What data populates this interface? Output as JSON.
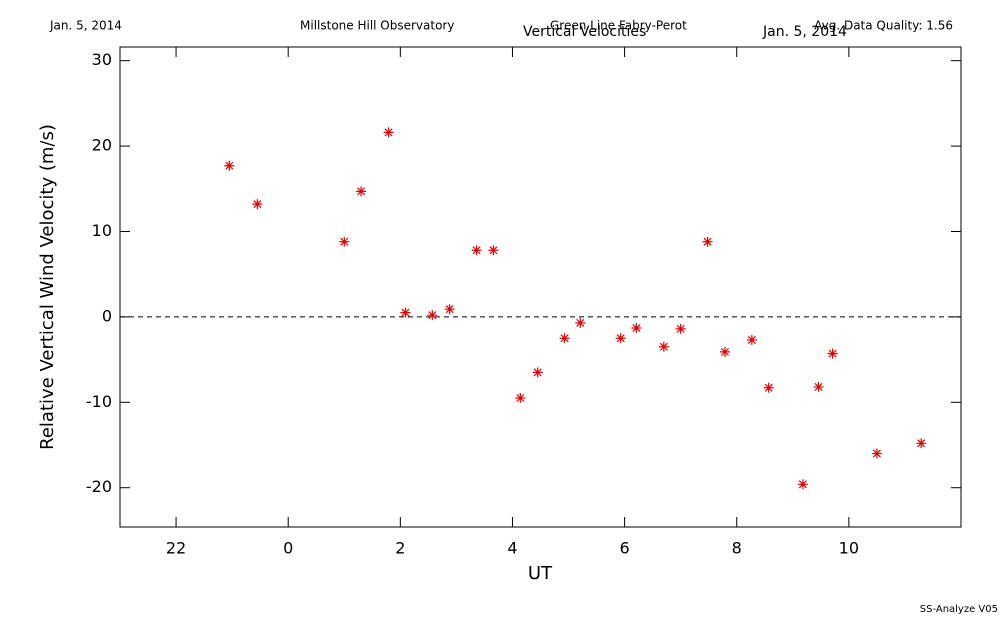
{
  "chart_data": {
    "type": "scatter",
    "header_left": "Jan. 5, 2014",
    "header_center": "Millstone Hill Observatory",
    "instrument": "Green Line Fabry-Perot",
    "title": "Vertical Velocities",
    "subtitle_date": "Jan. 5, 2014",
    "quality": "Avg. Data Quality: 1.56",
    "footer": "SS-Analyze V05",
    "x_label": "UT",
    "y_label": "Relative Vertical Wind Velocity (m/s)",
    "color": "#e00000",
    "hline": 0,
    "x": [
      -1.05,
      -0.55,
      1.0,
      1.3,
      1.79,
      2.09,
      2.57,
      2.88,
      3.36,
      3.66,
      4.14,
      4.45,
      4.93,
      5.21,
      5.93,
      6.21,
      6.7,
      7.0,
      7.48,
      7.79,
      8.27,
      8.57,
      9.18,
      9.46,
      9.71,
      10.5,
      11.29
    ],
    "values": [
      17.7,
      13.2,
      8.8,
      14.7,
      21.6,
      0.5,
      0.2,
      0.9,
      7.8,
      7.8,
      -9.5,
      -6.5,
      -2.5,
      -0.7,
      -2.5,
      -1.3,
      -3.5,
      -1.4,
      8.8,
      -4.1,
      -2.7,
      -8.3,
      -19.6,
      -8.2,
      -4.3,
      -16.0,
      -14.8
    ],
    "xlim": [
      -3,
      12
    ],
    "ylim": [
      -24.6,
      31.6
    ],
    "xticks": [
      {
        "value": -2,
        "label": "22"
      },
      0,
      2,
      4,
      6,
      8,
      10
    ],
    "yticks": [
      -20,
      -10,
      0,
      10,
      20,
      30
    ]
  }
}
